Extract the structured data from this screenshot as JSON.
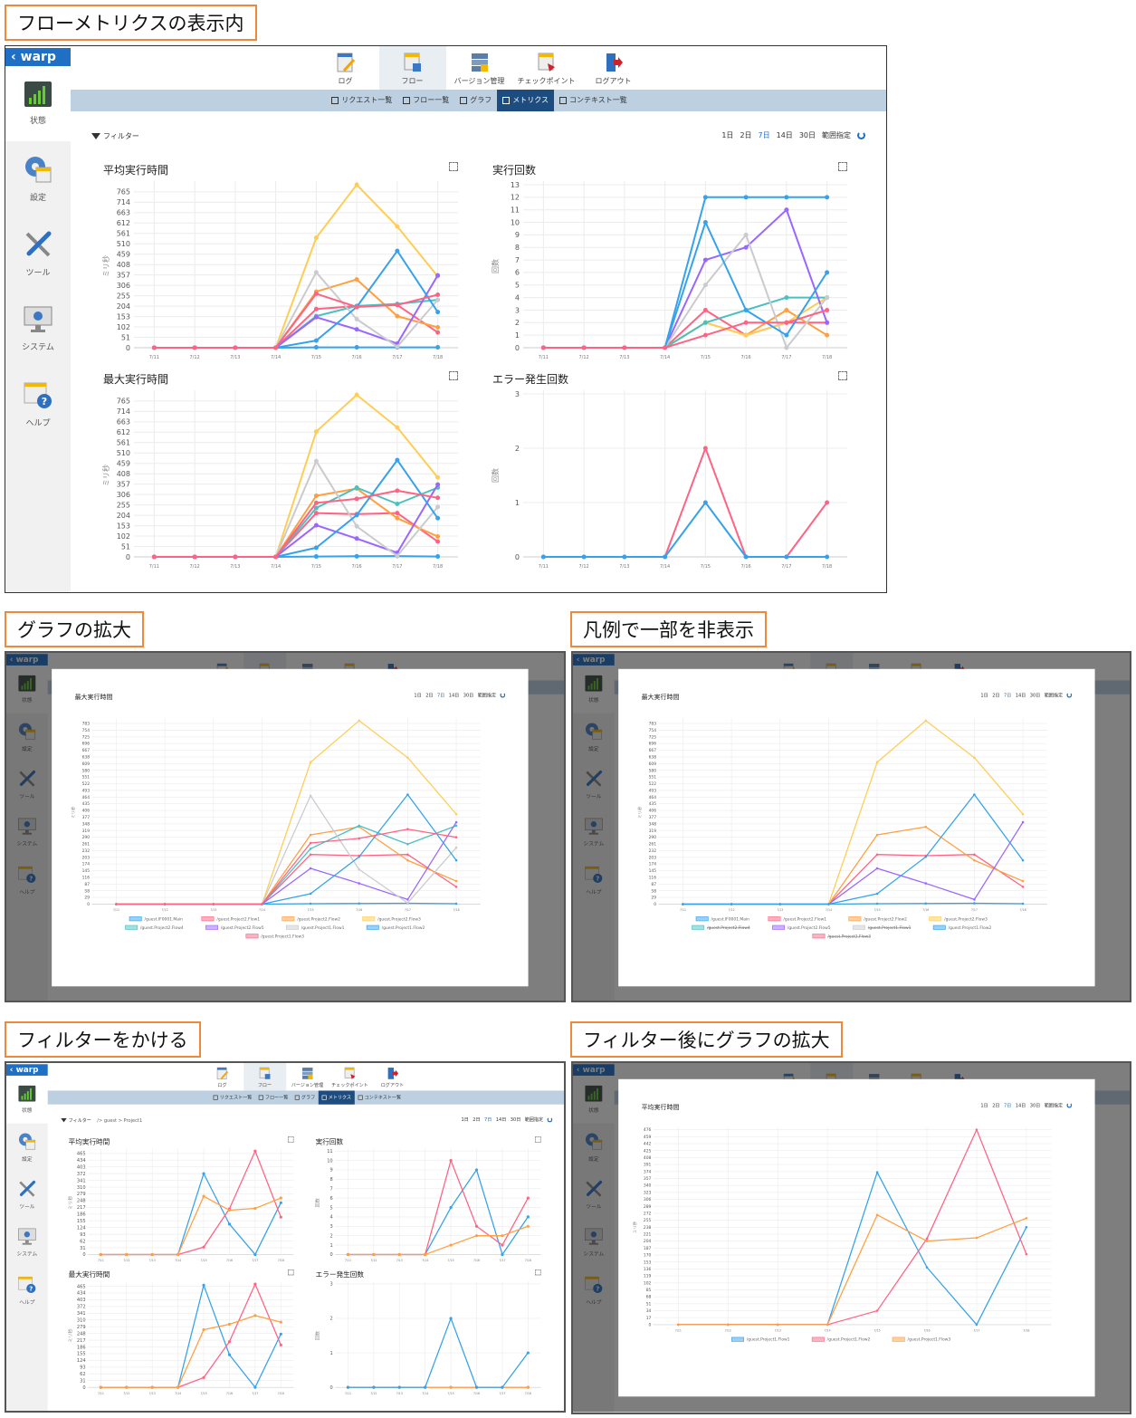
{
  "sections": {
    "main": "フローメトリクスの表示内",
    "zoom": "グラフの拡大",
    "legend": "凡例で一部を非表示",
    "filter": "フィルターをかける",
    "filter_zoom": "フィルター後にグラフの拡大"
  },
  "app": {
    "logo": "‹ warp",
    "sidebar": [
      {
        "label": "状態",
        "icon": "status-chart-icon",
        "active": true
      },
      {
        "label": "設定",
        "icon": "settings-gear-icon"
      },
      {
        "label": "ツール",
        "icon": "tools-icon"
      },
      {
        "label": "システム",
        "icon": "system-monitor-icon"
      },
      {
        "label": "ヘルプ",
        "icon": "help-icon"
      }
    ],
    "nav": [
      {
        "label": "ログ",
        "icon": "log-icon"
      },
      {
        "label": "フロー",
        "icon": "flow-icon",
        "active": true
      },
      {
        "label": "バージョン管理",
        "icon": "version-icon"
      },
      {
        "label": "チェックポイント",
        "icon": "checkpoint-icon"
      },
      {
        "label": "ログアウト",
        "icon": "logout-icon"
      }
    ],
    "subnav": [
      {
        "label": "リクエスト一覧"
      },
      {
        "label": "フロー一覧"
      },
      {
        "label": "グラフ"
      },
      {
        "label": "メトリクス",
        "active": true
      },
      {
        "label": "コンテキスト一覧"
      }
    ],
    "filter_label": "フィルター",
    "ranges": [
      "1日",
      "2日",
      "7日",
      "14日",
      "30日",
      "範囲指定"
    ],
    "active_range": "7日",
    "colors": {
      "accent": "#1f6fc5",
      "subnav_bg": "#bdd0e2",
      "subnav_active": "#1d4c80",
      "section_border": "#f0883a"
    }
  },
  "filtered": {
    "breadcrumb": "/> guest > Project1"
  },
  "chart_data": [
    {
      "id": "avg",
      "type": "line",
      "title": "平均実行時間",
      "ylabel": "ミリ秒",
      "ylim": [
        0,
        800
      ],
      "ytick_step": 51,
      "x": [
        "7/11",
        "7/12",
        "7/13",
        "7/14",
        "7/15",
        "7/16",
        "7/17",
        "7/18"
      ],
      "series": [
        {
          "name": "/guest.IF0001.Main",
          "color": "#36a2eb",
          "values": [
            0,
            0,
            0,
            0,
            2,
            2,
            2,
            2
          ]
        },
        {
          "name": "/guest.Project2.Flow1",
          "color": "#ff6384",
          "values": [
            0,
            0,
            0,
            0,
            190,
            205,
            210,
            75
          ]
        },
        {
          "name": "/guest.Project2.Flow2",
          "color": "#ff9f40",
          "values": [
            0,
            0,
            0,
            0,
            275,
            335,
            155,
            100
          ]
        },
        {
          "name": "/guest.Project2.Flow3",
          "color": "#ffcd56",
          "values": [
            0,
            0,
            0,
            0,
            540,
            800,
            595,
            350
          ]
        },
        {
          "name": "/guest.Project2.Flow4",
          "color": "#4bc0c0",
          "values": [
            0,
            0,
            0,
            0,
            155,
            205,
            215,
            235
          ]
        },
        {
          "name": "/guest.Project2.Flow5",
          "color": "#9966ff",
          "values": [
            0,
            0,
            0,
            0,
            150,
            90,
            20,
            355
          ]
        },
        {
          "name": "/guest.Project1.Flow1",
          "color": "#c9cbcf",
          "values": [
            0,
            0,
            0,
            0,
            370,
            140,
            5,
            235
          ]
        },
        {
          "name": "/guest.Project1.Flow2",
          "color": "#36a2eb",
          "values": [
            0,
            0,
            0,
            0,
            35,
            200,
            475,
            175
          ]
        },
        {
          "name": "/guest.Project1.Flow3",
          "color": "#ff6384",
          "values": [
            0,
            0,
            0,
            0,
            265,
            200,
            210,
            260
          ]
        }
      ]
    },
    {
      "id": "exec",
      "type": "line",
      "title": "実行回数",
      "ylabel": "回数",
      "ylim": [
        0,
        13
      ],
      "ytick_step": 1,
      "x": [
        "7/11",
        "7/12",
        "7/13",
        "7/14",
        "7/15",
        "7/16",
        "7/17",
        "7/18"
      ],
      "series": [
        {
          "name": "/guest.IF0001.Main",
          "color": "#36a2eb",
          "values": [
            0,
            0,
            0,
            0,
            12,
            12,
            12,
            12
          ]
        },
        {
          "name": "/guest.Project2.Flow1",
          "color": "#ff6384",
          "values": [
            0,
            0,
            0,
            0,
            3,
            1,
            2,
            2
          ]
        },
        {
          "name": "/guest.Project2.Flow2",
          "color": "#ff9f40",
          "values": [
            0,
            0,
            0,
            0,
            2,
            1,
            3,
            1
          ]
        },
        {
          "name": "/guest.Project2.Flow3",
          "color": "#ffcd56",
          "values": [
            0,
            0,
            0,
            0,
            2,
            1,
            2,
            4
          ]
        },
        {
          "name": "/guest.Project2.Flow4",
          "color": "#4bc0c0",
          "values": [
            0,
            0,
            0,
            0,
            2,
            3,
            4,
            4
          ]
        },
        {
          "name": "/guest.Project2.Flow5",
          "color": "#9966ff",
          "values": [
            0,
            0,
            0,
            0,
            7,
            8,
            11,
            2
          ]
        },
        {
          "name": "/guest.Project1.Flow1",
          "color": "#c9cbcf",
          "values": [
            0,
            0,
            0,
            0,
            5,
            9,
            0,
            4
          ]
        },
        {
          "name": "/guest.Project1.Flow2",
          "color": "#36a2eb",
          "values": [
            0,
            0,
            0,
            0,
            10,
            3,
            1,
            6
          ]
        },
        {
          "name": "/guest.Project1.Flow3",
          "color": "#ff6384",
          "values": [
            0,
            0,
            0,
            0,
            1,
            2,
            2,
            3
          ]
        }
      ]
    },
    {
      "id": "max",
      "type": "line",
      "title": "最大実行時間",
      "ylabel": "ミリ秒",
      "ylim": [
        0,
        800
      ],
      "ytick_step": 51,
      "x": [
        "7/11",
        "7/12",
        "7/13",
        "7/14",
        "7/15",
        "7/16",
        "7/17",
        "7/18"
      ],
      "series": [
        {
          "name": "/guest.IF0001.Main",
          "color": "#36a2eb",
          "values": [
            0,
            0,
            0,
            0,
            2,
            3,
            4,
            2
          ]
        },
        {
          "name": "/guest.Project2.Flow1",
          "color": "#ff6384",
          "values": [
            0,
            0,
            0,
            0,
            215,
            210,
            215,
            75
          ]
        },
        {
          "name": "/guest.Project2.Flow2",
          "color": "#ff9f40",
          "values": [
            0,
            0,
            0,
            0,
            300,
            335,
            190,
            100
          ]
        },
        {
          "name": "/guest.Project2.Flow3",
          "color": "#ffcd56",
          "values": [
            0,
            0,
            0,
            0,
            615,
            795,
            635,
            390
          ]
        },
        {
          "name": "/guest.Project2.Flow4",
          "color": "#4bc0c0",
          "values": [
            0,
            0,
            0,
            0,
            240,
            340,
            260,
            340
          ]
        },
        {
          "name": "/guest.Project2.Flow5",
          "color": "#9966ff",
          "values": [
            0,
            0,
            0,
            0,
            155,
            90,
            20,
            355
          ]
        },
        {
          "name": "/guest.Project1.Flow1",
          "color": "#c9cbcf",
          "values": [
            0,
            0,
            0,
            0,
            470,
            150,
            5,
            245
          ]
        },
        {
          "name": "/guest.Project1.Flow2",
          "color": "#36a2eb",
          "values": [
            0,
            0,
            0,
            0,
            45,
            205,
            475,
            190
          ]
        },
        {
          "name": "/guest.Project1.Flow3",
          "color": "#ff6384",
          "values": [
            0,
            0,
            0,
            0,
            265,
            285,
            325,
            290
          ]
        }
      ]
    },
    {
      "id": "err",
      "type": "line",
      "title": "エラー発生回数",
      "ylabel": "回数",
      "ylim": [
        0,
        3
      ],
      "ytick_step": 1,
      "x": [
        "7/11",
        "7/12",
        "7/13",
        "7/14",
        "7/15",
        "7/16",
        "7/17",
        "7/18"
      ],
      "series": [
        {
          "name": "/guest.Project2.Flow1",
          "color": "#ff6384",
          "values": [
            0,
            0,
            0,
            0,
            2,
            0,
            0,
            1
          ]
        },
        {
          "name": "/guest.IF0001.Main",
          "color": "#36a2eb",
          "values": [
            0,
            0,
            0,
            0,
            1,
            0,
            0,
            0
          ]
        }
      ]
    },
    {
      "id": "f-avg",
      "type": "line",
      "title": "平均実行時間",
      "ylabel": "ミリ秒",
      "ylim": [
        0,
        476
      ],
      "ytick_step": 31,
      "x": [
        "7/11",
        "7/12",
        "7/13",
        "7/14",
        "7/15",
        "7/16",
        "7/17",
        "7/18"
      ],
      "series": [
        {
          "name": "/guest.Project1.Flow1",
          "color": "#36a2eb",
          "values": [
            0,
            0,
            0,
            0,
            372,
            140,
            0,
            238
          ]
        },
        {
          "name": "/guest.Project1.Flow2",
          "color": "#ff6384",
          "values": [
            0,
            0,
            0,
            0,
            34,
            210,
            476,
            172
          ]
        },
        {
          "name": "/guest.Project1.Flow3",
          "color": "#ff9f40",
          "values": [
            0,
            0,
            0,
            0,
            268,
            204,
            212,
            260
          ]
        }
      ]
    },
    {
      "id": "f-exec",
      "type": "line",
      "title": "実行回数",
      "ylabel": "回数",
      "ylim": [
        0,
        11
      ],
      "ytick_step": 1,
      "x": [
        "7/11",
        "7/12",
        "7/13",
        "7/14",
        "7/15",
        "7/16",
        "7/17",
        "7/18"
      ],
      "series": [
        {
          "name": "/guest.Project1.Flow1",
          "color": "#36a2eb",
          "values": [
            0,
            0,
            0,
            0,
            5,
            9,
            0,
            4
          ]
        },
        {
          "name": "/guest.Project1.Flow2",
          "color": "#ff6384",
          "values": [
            0,
            0,
            0,
            0,
            10,
            3,
            1,
            6
          ]
        },
        {
          "name": "/guest.Project1.Flow3",
          "color": "#ff9f40",
          "values": [
            0,
            0,
            0,
            0,
            1,
            2,
            2,
            3
          ]
        }
      ]
    },
    {
      "id": "f-max",
      "type": "line",
      "title": "最大実行時間",
      "ylabel": "ミリ秒",
      "ylim": [
        0,
        476
      ],
      "ytick_step": 31,
      "x": [
        "7/11",
        "7/12",
        "7/13",
        "7/14",
        "7/15",
        "7/16",
        "7/17",
        "7/18"
      ],
      "series": [
        {
          "name": "/guest.Project1.Flow1",
          "color": "#36a2eb",
          "values": [
            0,
            0,
            0,
            0,
            470,
            150,
            0,
            245
          ]
        },
        {
          "name": "/guest.Project1.Flow2",
          "color": "#ff6384",
          "values": [
            0,
            0,
            0,
            0,
            45,
            210,
            475,
            195
          ]
        },
        {
          "name": "/guest.Project1.Flow3",
          "color": "#ff9f40",
          "values": [
            0,
            0,
            0,
            0,
            265,
            290,
            330,
            300
          ]
        }
      ]
    },
    {
      "id": "f-err",
      "type": "line",
      "title": "エラー発生回数",
      "ylabel": "回数",
      "ylim": [
        0,
        3
      ],
      "ytick_step": 1,
      "x": [
        "7/11",
        "7/12",
        "7/13",
        "7/14",
        "7/15",
        "7/16",
        "7/17",
        "7/18"
      ],
      "series": [
        {
          "name": "/guest.Project1.Flow2",
          "color": "#ff6384",
          "values": [
            0,
            0,
            0,
            0,
            0,
            0,
            0,
            0
          ]
        },
        {
          "name": "/guest.Project1.Flow3",
          "color": "#ff9f40",
          "values": [
            0,
            0,
            0,
            0,
            0,
            0,
            0,
            0
          ]
        },
        {
          "name": "/guest.Project1.Flow1",
          "color": "#36a2eb",
          "values": [
            0,
            0,
            0,
            0,
            2,
            0,
            0,
            1
          ]
        }
      ]
    }
  ],
  "zoom_views": {
    "zoom": {
      "chart": "max",
      "ylim": [
        0,
        795
      ],
      "ytick_step": 29,
      "legend": "bottom",
      "hidden_series": []
    },
    "legend": {
      "chart": "max",
      "ylim": [
        0,
        795
      ],
      "ytick_step": 29,
      "legend": "bottom",
      "hidden_series": [
        "/guest.Project2.Flow4",
        "/guest.Project1.Flow1",
        "/guest.Project1.Flow3"
      ]
    },
    "filter_zoom": {
      "chart": "f-avg",
      "ylim": [
        0,
        476
      ],
      "ytick_step": 17,
      "legend": "bottom",
      "hidden_series": []
    }
  }
}
